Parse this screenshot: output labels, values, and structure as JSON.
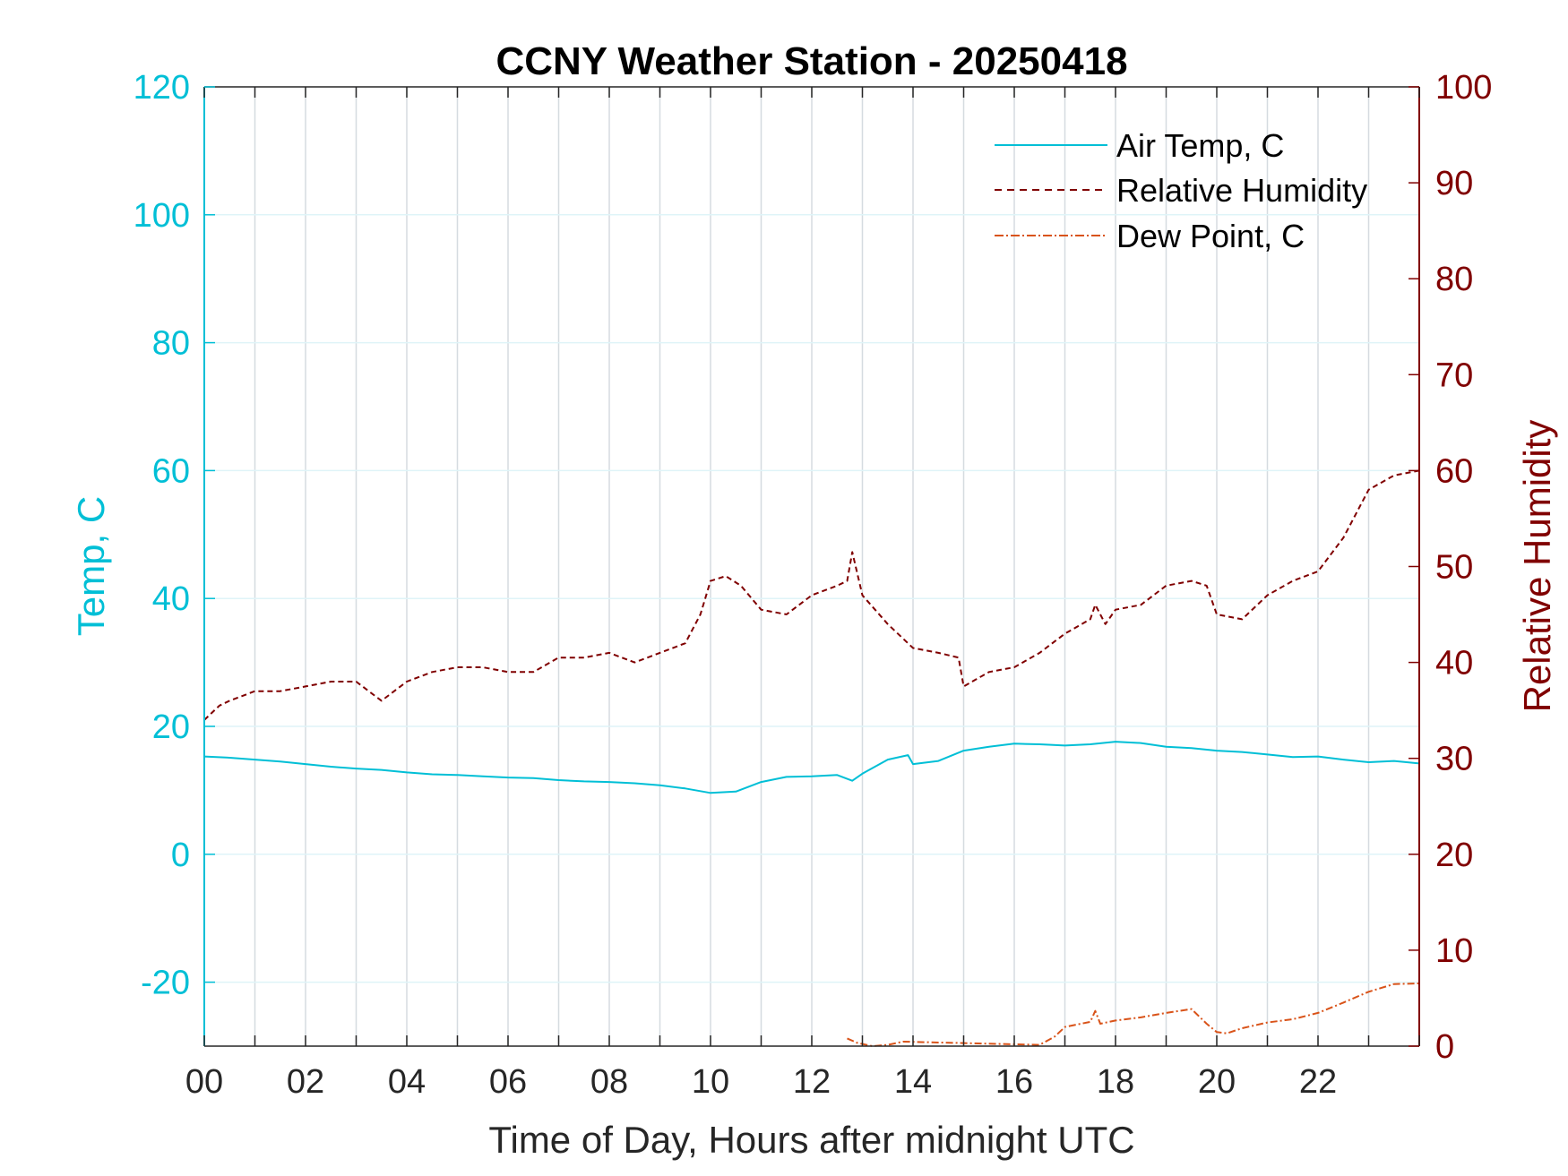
{
  "chart_data": {
    "type": "line",
    "title": "CCNY Weather Station - 20250418",
    "xlabel": "Time of Day, Hours after midnight UTC",
    "ylabel_left": "Temp, C",
    "ylabel_right": "Relative Humidity",
    "xlim": [
      0,
      24
    ],
    "ylim_left": [
      -30,
      120
    ],
    "ylim_right": [
      0,
      100
    ],
    "x_ticks": [
      0,
      2,
      4,
      6,
      8,
      10,
      12,
      14,
      16,
      18,
      20,
      22
    ],
    "x_tick_labels": [
      "00",
      "02",
      "04",
      "06",
      "08",
      "10",
      "12",
      "14",
      "16",
      "18",
      "20",
      "22"
    ],
    "y_left_ticks": [
      -20,
      0,
      20,
      40,
      60,
      80,
      100,
      120
    ],
    "y_right_ticks": [
      0,
      10,
      20,
      30,
      40,
      50,
      60,
      70,
      80,
      90,
      100
    ],
    "grid": true,
    "legend_position": "top-right",
    "colors": {
      "air_temp": "#00BFD6",
      "humidity": "#800000",
      "dew_point": "#D95319",
      "axis_left": "#00BFD6",
      "axis_right": "#800000"
    },
    "series": [
      {
        "name": "Air Temp, C",
        "axis": "left",
        "style": "solid",
        "x": [
          0,
          0.5,
          1,
          1.5,
          2,
          2.5,
          3,
          3.5,
          4,
          4.5,
          5,
          5.5,
          6,
          6.5,
          7,
          7.5,
          8,
          8.5,
          9,
          9.5,
          10,
          10.5,
          11,
          11.5,
          12,
          12.5,
          12.8,
          13,
          13.5,
          13.9,
          14,
          14.5,
          15,
          15.5,
          16,
          16.5,
          17,
          17.5,
          18,
          18.5,
          19,
          19.5,
          20,
          20.5,
          21,
          21.5,
          22,
          22.5,
          23,
          23.5,
          24
        ],
        "y": [
          15.3,
          15.1,
          14.8,
          14.5,
          14.1,
          13.7,
          13.4,
          13.2,
          12.8,
          12.5,
          12.4,
          12.2,
          12.0,
          11.9,
          11.6,
          11.4,
          11.3,
          11.1,
          10.8,
          10.3,
          9.6,
          9.8,
          11.3,
          12.1,
          12.2,
          12.4,
          11.5,
          12.6,
          14.8,
          15.5,
          14.1,
          14.6,
          16.2,
          16.8,
          17.3,
          17.2,
          17.0,
          17.2,
          17.6,
          17.4,
          16.8,
          16.6,
          16.2,
          16.0,
          15.6,
          15.2,
          15.3,
          14.8,
          14.4,
          14.6,
          14.2
        ]
      },
      {
        "name": "Relative Humidity",
        "axis": "right",
        "style": "dashed",
        "x": [
          0,
          0.3,
          0.5,
          1,
          1.5,
          2,
          2.5,
          3,
          3.2,
          3.5,
          4,
          4.5,
          5,
          5.5,
          6,
          6.5,
          7,
          7.5,
          8,
          8.5,
          9,
          9.5,
          9.8,
          10,
          10.3,
          10.6,
          11,
          11.5,
          12,
          12.5,
          12.7,
          12.8,
          13,
          13.5,
          14,
          14.5,
          14.9,
          15,
          15.5,
          16,
          16.5,
          17,
          17.5,
          17.6,
          17.8,
          18,
          18.5,
          19,
          19.5,
          19.8,
          20,
          20.5,
          21,
          21.5,
          22,
          22.5,
          23,
          23.5,
          24
        ],
        "y": [
          34,
          35.5,
          36,
          37,
          37,
          37.5,
          38,
          38,
          37.2,
          36,
          38,
          39,
          39.5,
          39.5,
          39,
          39,
          40.5,
          40.5,
          41,
          40,
          41,
          42,
          45,
          48.5,
          49,
          48,
          45.5,
          45,
          47,
          48,
          48.5,
          51.5,
          47,
          44,
          41.5,
          41,
          40.5,
          37.5,
          39,
          39.5,
          41,
          43,
          44.5,
          46,
          44,
          45.5,
          46,
          48,
          48.5,
          48,
          45,
          44.5,
          47,
          48.5,
          49.5,
          53,
          58,
          59.5,
          60
        ]
      },
      {
        "name": "Dew Point, C",
        "axis": "left",
        "style": "dash-dot",
        "x": [
          12.7,
          12.9,
          13.2,
          13.5,
          13.8,
          16.5,
          16.8,
          17,
          17.5,
          17.6,
          17.7,
          18,
          18.5,
          19,
          19.5,
          19.8,
          20,
          20.2,
          20.5,
          21,
          21.5,
          22,
          22.5,
          23,
          23.5,
          24
        ],
        "y": [
          -28.8,
          -29.5,
          -30,
          -29.8,
          -29.3,
          -29.8,
          -28.5,
          -27.0,
          -26.2,
          -24.5,
          -26.5,
          -26.0,
          -25.5,
          -24.8,
          -24.2,
          -26.5,
          -27.8,
          -28.0,
          -27.2,
          -26.3,
          -25.8,
          -24.8,
          -23.2,
          -21.5,
          -20.3,
          -20.2
        ]
      }
    ]
  }
}
